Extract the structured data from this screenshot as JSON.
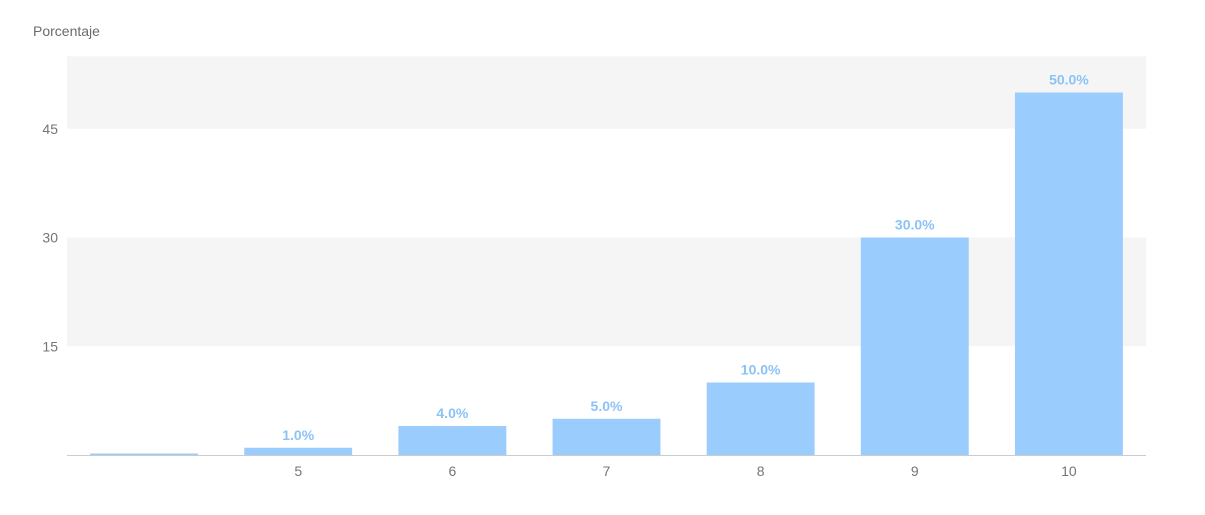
{
  "colors": {
    "bar": "#9accfd",
    "data_label": "#8cc3f7",
    "band": "#f5f5f5",
    "axis_text": "#757575",
    "ylabel_text": "#6b6b6b",
    "baseline": "#cccccc"
  },
  "chart_data": {
    "type": "bar",
    "ylabel": "Porcentaje",
    "categories": [
      "",
      "5",
      "6",
      "7",
      "8",
      "9",
      "10"
    ],
    "values": [
      0,
      1,
      4,
      5,
      10,
      30,
      50
    ],
    "data_labels": [
      "",
      "1.0%",
      "4.0%",
      "5.0%",
      "10.0%",
      "30.0%",
      "50.0%"
    ],
    "yticks": [
      15,
      30,
      45
    ],
    "ylim": [
      0,
      55
    ],
    "grid": "alternating-bands",
    "legend": "none"
  }
}
